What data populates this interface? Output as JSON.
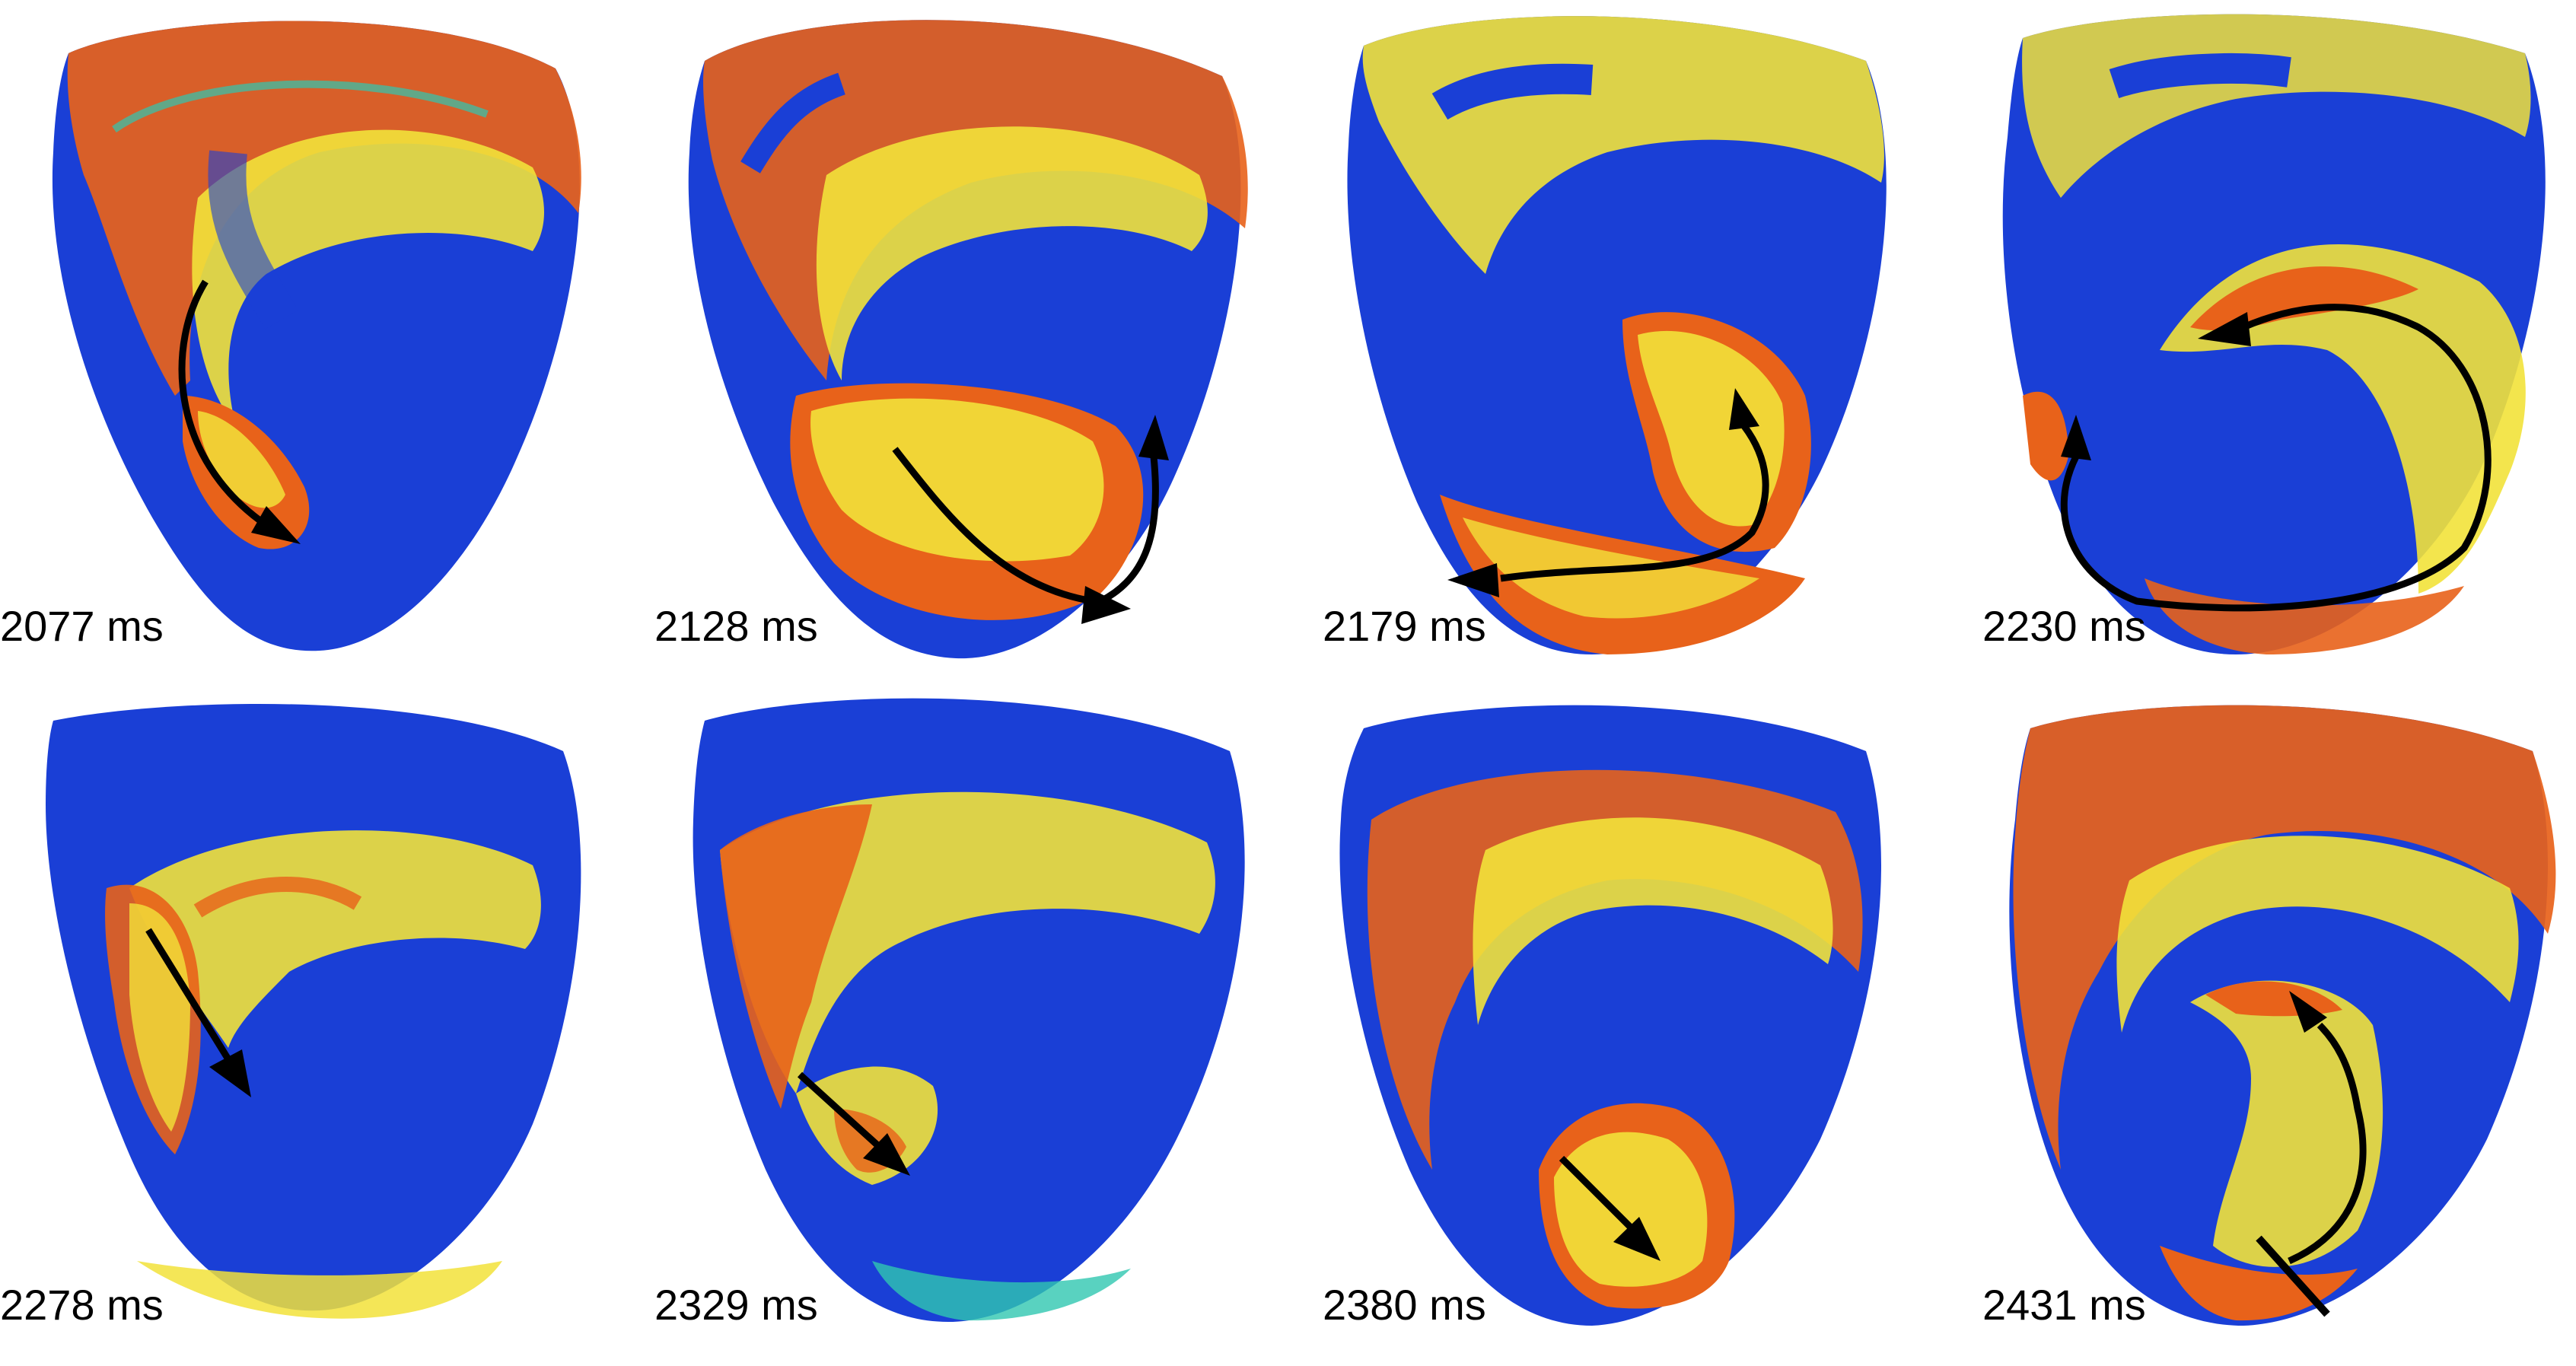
{
  "panels": [
    {
      "time": "2077 ms"
    },
    {
      "time": "2128 ms"
    },
    {
      "time": "2179 ms"
    },
    {
      "time": "2230 ms"
    },
    {
      "time": "2278 ms"
    },
    {
      "time": "2329 ms"
    },
    {
      "time": "2380 ms"
    },
    {
      "time": "2431 ms"
    }
  ],
  "colors": {
    "resting": "#1a3fd6",
    "activated": "#e8621a",
    "wavefront": "#f2e23a",
    "transition": "#2fc7b0",
    "arrow": "#000000",
    "background": "#ffffff"
  },
  "icons": [
    "propagation-arrow-icon",
    "block-line-icon"
  ]
}
